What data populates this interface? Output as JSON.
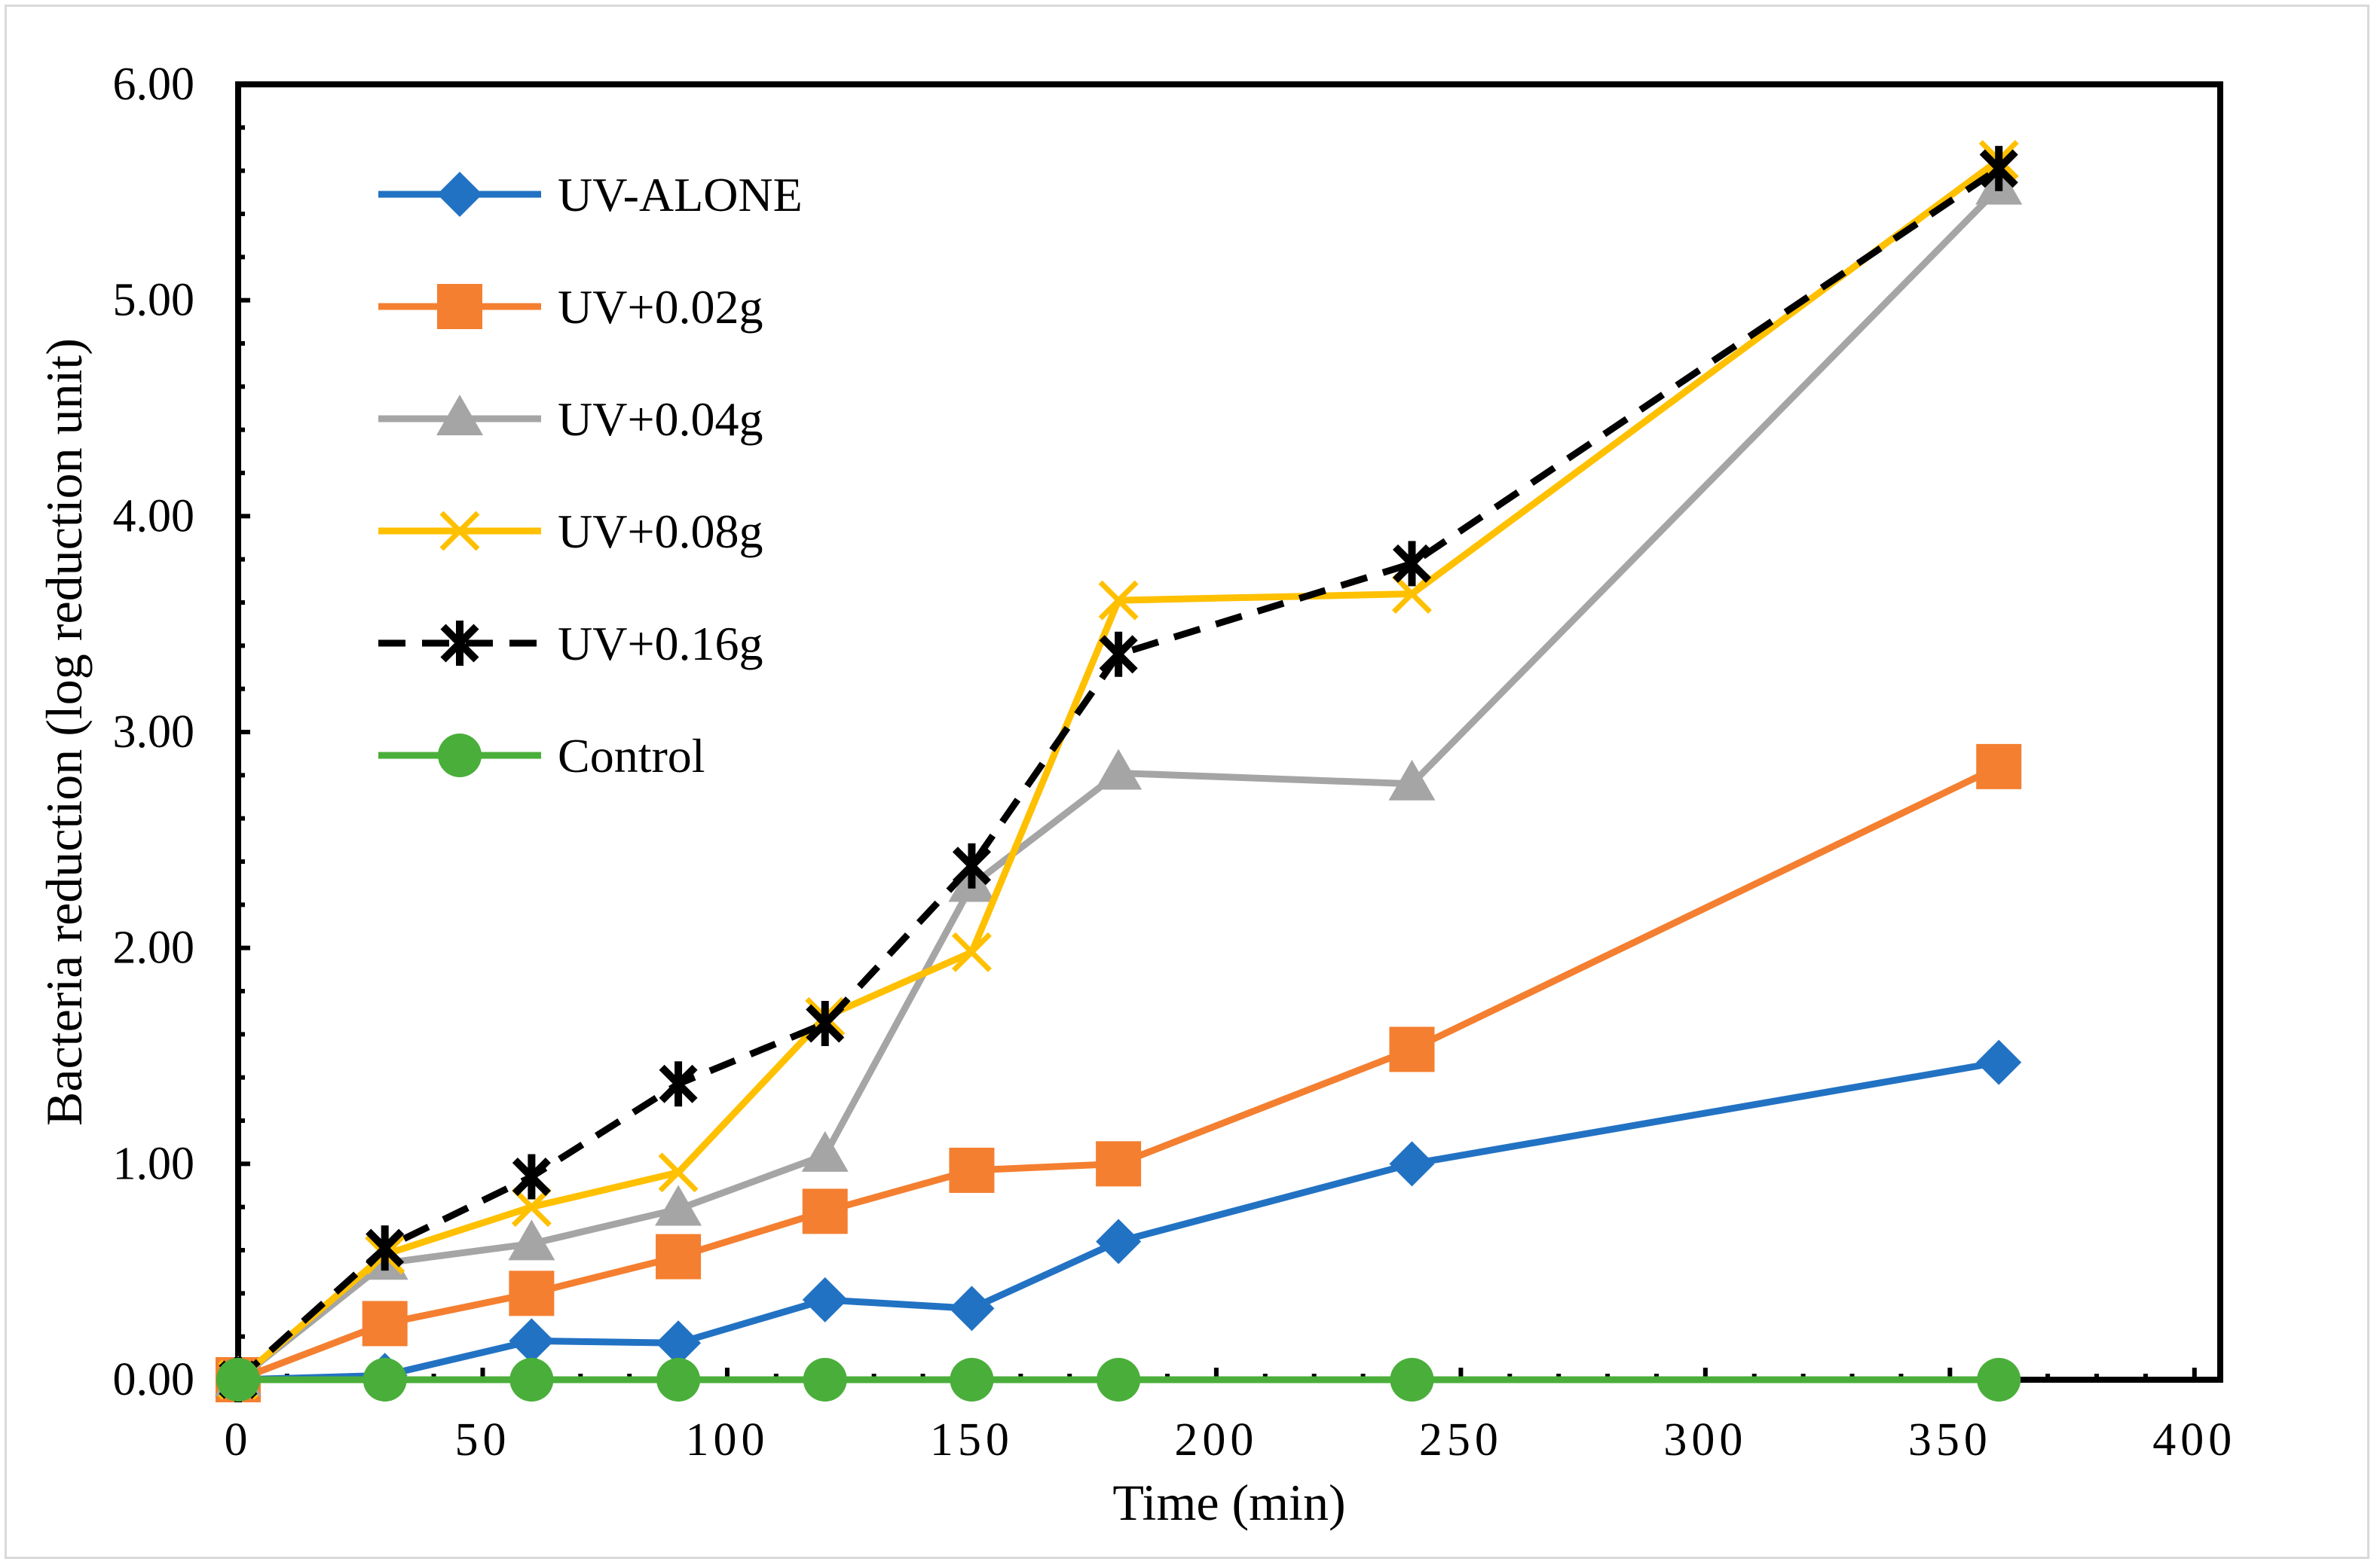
{
  "chart_data": {
    "type": "line",
    "title": "",
    "xlabel": "Time (min)",
    "ylabel": "Bacteria reduction (log reduction unit)",
    "xlim": [
      0,
      400
    ],
    "ylim": [
      0,
      6
    ],
    "x_ticks": [
      0,
      50,
      100,
      150,
      200,
      250,
      300,
      350,
      400
    ],
    "x_tick_labels": [
      "0",
      "50",
      "100",
      "150",
      "200",
      "250",
      "300",
      "350",
      "400"
    ],
    "y_ticks": [
      0,
      1,
      2,
      3,
      4,
      5,
      6
    ],
    "y_tick_labels": [
      "0.00",
      "1.00",
      "2.00",
      "3.00",
      "4.00",
      "5.00",
      "6.00"
    ],
    "grid": false,
    "legend_position": "top-left",
    "series": [
      {
        "name": "UV-ALONE",
        "color": "#2272c3",
        "marker": "diamond",
        "dash": "solid",
        "x": [
          0,
          30,
          60,
          90,
          120,
          150,
          180,
          240,
          360
        ],
        "y": [
          0,
          0.02,
          0.18,
          0.17,
          0.37,
          0.33,
          0.64,
          1.0,
          1.47
        ]
      },
      {
        "name": "UV+0.02g",
        "color": "#f47f30",
        "marker": "square",
        "dash": "solid",
        "x": [
          0,
          30,
          60,
          90,
          120,
          150,
          180,
          240,
          360
        ],
        "y": [
          0,
          0.26,
          0.4,
          0.57,
          0.78,
          0.97,
          1.0,
          1.53,
          2.84
        ]
      },
      {
        "name": "UV+0.04g",
        "color": "#a5a5a5",
        "marker": "triangle",
        "dash": "solid",
        "x": [
          0,
          30,
          60,
          90,
          120,
          150,
          180,
          240,
          360
        ],
        "y": [
          0,
          0.54,
          0.63,
          0.79,
          1.04,
          2.29,
          2.81,
          2.76,
          5.52
        ]
      },
      {
        "name": "UV+0.08g",
        "color": "#ffc000",
        "marker": "x",
        "dash": "solid",
        "x": [
          0,
          30,
          60,
          90,
          120,
          150,
          180,
          240,
          360
        ],
        "y": [
          0,
          0.58,
          0.8,
          0.96,
          1.68,
          1.98,
          3.61,
          3.64,
          5.65
        ]
      },
      {
        "name": "UV+0.16g",
        "color": "#000000",
        "marker": "star",
        "dash": "dashed",
        "x": [
          0,
          30,
          60,
          90,
          120,
          150,
          180,
          240,
          360
        ],
        "y": [
          0,
          0.61,
          0.94,
          1.37,
          1.65,
          2.38,
          3.36,
          3.78,
          5.61
        ]
      },
      {
        "name": "Control",
        "color": "#4aae3a",
        "marker": "circle",
        "dash": "solid",
        "x": [
          0,
          30,
          60,
          90,
          120,
          150,
          180,
          240,
          360
        ],
        "y": [
          0,
          0,
          0,
          0,
          0,
          0,
          0,
          0,
          0
        ]
      }
    ]
  }
}
